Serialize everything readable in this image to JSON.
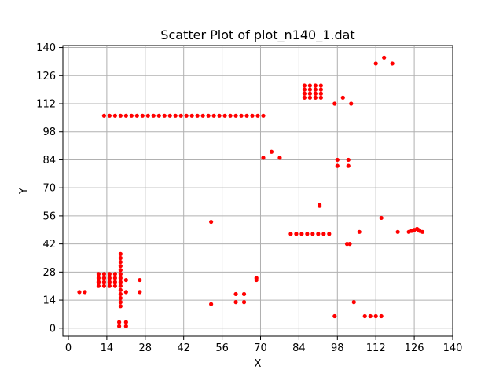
{
  "chart_data": {
    "type": "scatter",
    "title": "Scatter Plot of plot_n140_1.dat",
    "xlabel": "X",
    "ylabel": "Y",
    "xlim": [
      -2,
      140
    ],
    "ylim": [
      -4,
      141
    ],
    "xticks": [
      0,
      14,
      28,
      42,
      56,
      70,
      84,
      98,
      112,
      126,
      140
    ],
    "yticks": [
      0,
      14,
      28,
      42,
      56,
      70,
      84,
      98,
      112,
      126,
      140
    ],
    "grid": true,
    "marker_color": "#ff0000",
    "series": [
      {
        "points": [
          [
            13,
            106
          ],
          [
            15,
            106
          ],
          [
            17,
            106
          ],
          [
            19,
            106
          ],
          [
            21,
            106
          ],
          [
            23,
            106
          ],
          [
            25,
            106
          ],
          [
            27,
            106
          ],
          [
            29,
            106
          ],
          [
            31,
            106
          ],
          [
            33,
            106
          ],
          [
            35,
            106
          ],
          [
            37,
            106
          ],
          [
            39,
            106
          ],
          [
            41,
            106
          ],
          [
            43,
            106
          ],
          [
            45,
            106
          ],
          [
            47,
            106
          ],
          [
            49,
            106
          ],
          [
            51,
            106
          ],
          [
            53,
            106
          ],
          [
            55,
            106
          ],
          [
            57,
            106
          ],
          [
            59,
            106
          ],
          [
            61,
            106
          ],
          [
            63,
            106
          ],
          [
            65,
            106
          ],
          [
            67,
            106
          ],
          [
            69,
            106
          ],
          [
            71,
            106
          ],
          [
            86,
            121
          ],
          [
            88,
            121
          ],
          [
            90,
            121
          ],
          [
            92,
            121
          ],
          [
            86,
            119
          ],
          [
            88,
            119
          ],
          [
            90,
            119
          ],
          [
            92,
            119
          ],
          [
            86,
            117
          ],
          [
            88,
            117
          ],
          [
            90,
            117
          ],
          [
            92,
            117
          ],
          [
            86,
            115
          ],
          [
            88,
            115
          ],
          [
            90,
            115
          ],
          [
            92,
            115
          ],
          [
            115,
            135
          ],
          [
            118,
            132
          ],
          [
            112,
            132
          ],
          [
            100,
            115
          ],
          [
            97,
            112
          ],
          [
            103,
            112
          ],
          [
            74,
            88
          ],
          [
            71,
            85
          ],
          [
            77,
            85
          ],
          [
            98,
            84
          ],
          [
            102,
            84
          ],
          [
            98,
            81
          ],
          [
            102,
            81
          ],
          [
            91.5,
            61.5
          ],
          [
            91.5,
            61
          ],
          [
            114,
            55
          ],
          [
            52,
            53
          ],
          [
            81,
            47
          ],
          [
            83,
            47
          ],
          [
            85,
            47
          ],
          [
            87,
            47
          ],
          [
            89,
            47
          ],
          [
            91,
            47
          ],
          [
            93,
            47
          ],
          [
            95,
            47
          ],
          [
            106,
            48
          ],
          [
            120,
            48
          ],
          [
            124,
            48
          ],
          [
            125,
            48.5
          ],
          [
            126,
            49
          ],
          [
            127,
            49.5
          ],
          [
            127.5,
            49
          ],
          [
            128,
            48.5
          ],
          [
            129,
            48
          ],
          [
            101.5,
            42
          ],
          [
            102.5,
            42
          ],
          [
            19,
            37
          ],
          [
            19,
            35
          ],
          [
            19,
            33
          ],
          [
            19,
            31
          ],
          [
            19,
            29
          ],
          [
            19,
            27
          ],
          [
            19,
            25
          ],
          [
            19,
            23
          ],
          [
            19,
            21
          ],
          [
            19,
            19
          ],
          [
            19,
            17
          ],
          [
            19,
            15
          ],
          [
            19,
            13
          ],
          [
            19,
            11
          ],
          [
            11,
            27
          ],
          [
            13,
            27
          ],
          [
            15,
            27
          ],
          [
            17,
            27
          ],
          [
            11,
            25
          ],
          [
            13,
            25
          ],
          [
            15,
            25
          ],
          [
            17,
            25
          ],
          [
            11,
            23
          ],
          [
            13,
            25
          ],
          [
            11,
            23
          ],
          [
            13,
            23
          ],
          [
            15,
            23
          ],
          [
            17,
            23
          ],
          [
            11,
            21
          ],
          [
            13,
            21
          ],
          [
            15,
            21
          ],
          [
            17,
            21
          ],
          [
            21,
            24
          ],
          [
            26,
            24
          ],
          [
            21,
            18
          ],
          [
            26,
            18
          ],
          [
            4,
            18
          ],
          [
            6,
            18
          ],
          [
            68.5,
            25
          ],
          [
            68.5,
            24
          ],
          [
            61,
            17
          ],
          [
            64,
            17
          ],
          [
            61,
            13
          ],
          [
            64,
            13
          ],
          [
            52,
            12
          ],
          [
            104,
            13
          ],
          [
            97,
            6
          ],
          [
            108,
            6
          ],
          [
            110,
            6
          ],
          [
            112,
            6
          ],
          [
            114,
            6
          ],
          [
            18.5,
            3
          ],
          [
            21,
            3
          ],
          [
            18.5,
            1
          ],
          [
            21,
            1
          ]
        ]
      }
    ]
  }
}
